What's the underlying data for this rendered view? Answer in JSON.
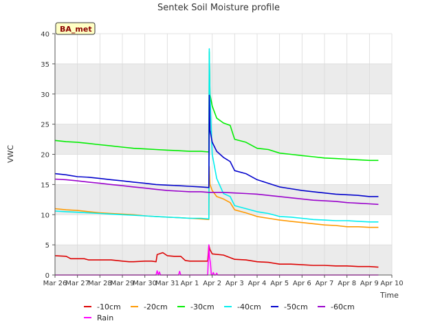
{
  "chart_data": {
    "type": "line",
    "title": "Sentek Soil Moisture profile",
    "xlabel": "Time",
    "ylabel": "VWC",
    "ylim": [
      0,
      40
    ],
    "xlim": [
      0,
      15
    ],
    "yticks": [
      0,
      5,
      10,
      15,
      20,
      25,
      30,
      35,
      40
    ],
    "xtick_labels": [
      "Mar 26",
      "Mar 27",
      "Mar 28",
      "Mar 29",
      "Mar 30",
      "Mar 31",
      "Apr 1",
      "Apr 2",
      "Apr 3",
      "Apr 4",
      "Apr 5",
      "Apr 6",
      "Apr 7",
      "Apr 8",
      "Apr 9",
      "Apr 10"
    ],
    "badge": "BA_met",
    "grid": true,
    "legend_position": "bottom",
    "series": [
      {
        "name": "-10cm",
        "color": "#dd0000",
        "x": [
          0.0,
          0.5,
          0.7,
          1.0,
          1.3,
          1.5,
          2.0,
          2.5,
          3.0,
          3.3,
          3.5,
          4.0,
          4.3,
          4.5,
          4.55,
          4.8,
          5.0,
          5.3,
          5.6,
          5.8,
          6.0,
          6.5,
          6.8,
          6.85,
          6.9,
          7.0,
          7.5,
          8.0,
          8.5,
          9.0,
          9.5,
          10.0,
          10.5,
          11.0,
          11.5,
          12.0,
          12.5,
          13.0,
          13.5,
          14.0,
          14.4
        ],
        "y": [
          3.2,
          3.1,
          2.7,
          2.7,
          2.7,
          2.5,
          2.5,
          2.5,
          2.3,
          2.2,
          2.2,
          2.3,
          2.3,
          2.2,
          3.4,
          3.7,
          3.2,
          3.1,
          3.1,
          2.4,
          2.3,
          2.3,
          2.3,
          4.9,
          4.2,
          3.5,
          3.3,
          2.6,
          2.5,
          2.2,
          2.1,
          1.8,
          1.8,
          1.7,
          1.6,
          1.6,
          1.5,
          1.5,
          1.4,
          1.4,
          1.3
        ]
      },
      {
        "name": "-20cm",
        "color": "#ff9900",
        "x": [
          0.0,
          0.5,
          1.0,
          1.5,
          2.0,
          2.5,
          3.0,
          3.5,
          4.0,
          4.5,
          5.0,
          5.5,
          6.0,
          6.5,
          6.85,
          6.87,
          6.9,
          7.0,
          7.2,
          7.5,
          7.8,
          8.0,
          8.5,
          9.0,
          9.5,
          10.0,
          10.5,
          11.0,
          11.5,
          12.0,
          12.5,
          13.0,
          13.5,
          14.0,
          14.4
        ],
        "y": [
          11.0,
          10.8,
          10.7,
          10.5,
          10.3,
          10.2,
          10.1,
          10.0,
          9.8,
          9.7,
          9.6,
          9.5,
          9.4,
          9.3,
          9.2,
          18.0,
          15.0,
          14.0,
          13.0,
          12.6,
          12.0,
          10.8,
          10.3,
          9.7,
          9.4,
          9.1,
          8.9,
          8.7,
          8.5,
          8.3,
          8.2,
          8.0,
          8.0,
          7.9,
          7.9
        ]
      },
      {
        "name": "-30cm",
        "color": "#00ee00",
        "x": [
          0.0,
          0.5,
          1.0,
          1.5,
          2.0,
          2.5,
          3.0,
          3.5,
          4.0,
          4.5,
          5.0,
          5.5,
          6.0,
          6.5,
          6.85,
          6.87,
          6.9,
          7.0,
          7.2,
          7.5,
          7.8,
          8.0,
          8.5,
          9.0,
          9.5,
          10.0,
          10.5,
          11.0,
          11.5,
          12.0,
          12.5,
          13.0,
          13.5,
          14.0,
          14.4
        ],
        "y": [
          22.3,
          22.1,
          22.0,
          21.8,
          21.6,
          21.4,
          21.2,
          21.0,
          20.9,
          20.8,
          20.7,
          20.6,
          20.5,
          20.5,
          20.4,
          37.0,
          30.0,
          28.0,
          26.0,
          25.2,
          24.8,
          22.5,
          22.0,
          21.0,
          20.8,
          20.2,
          20.0,
          19.8,
          19.6,
          19.4,
          19.3,
          19.2,
          19.1,
          19.0,
          19.0
        ]
      },
      {
        "name": "-40cm",
        "color": "#00eeee",
        "x": [
          0.0,
          0.5,
          1.0,
          1.5,
          2.0,
          2.5,
          3.0,
          3.5,
          4.0,
          4.5,
          5.0,
          5.5,
          6.0,
          6.5,
          6.85,
          6.87,
          6.9,
          7.0,
          7.2,
          7.5,
          7.8,
          8.0,
          8.5,
          9.0,
          9.5,
          10.0,
          10.5,
          11.0,
          11.5,
          12.0,
          12.5,
          13.0,
          13.5,
          14.0,
          14.4
        ],
        "y": [
          10.6,
          10.5,
          10.4,
          10.3,
          10.2,
          10.1,
          10.0,
          9.9,
          9.8,
          9.7,
          9.6,
          9.5,
          9.4,
          9.4,
          9.3,
          37.5,
          30.0,
          20.0,
          16.0,
          13.5,
          13.0,
          11.5,
          11.0,
          10.5,
          10.2,
          9.7,
          9.6,
          9.4,
          9.2,
          9.1,
          9.0,
          9.0,
          8.9,
          8.8,
          8.8
        ]
      },
      {
        "name": "-50cm",
        "color": "#0000cc",
        "x": [
          0.0,
          0.5,
          1.0,
          1.5,
          2.0,
          2.5,
          3.0,
          3.5,
          4.0,
          4.5,
          5.0,
          5.5,
          6.0,
          6.5,
          6.85,
          6.87,
          6.9,
          7.0,
          7.2,
          7.5,
          7.8,
          8.0,
          8.5,
          9.0,
          9.5,
          10.0,
          10.5,
          11.0,
          11.5,
          12.0,
          12.5,
          13.0,
          13.5,
          14.0,
          14.4
        ],
        "y": [
          16.8,
          16.6,
          16.3,
          16.2,
          16.0,
          15.8,
          15.6,
          15.4,
          15.2,
          15.0,
          14.9,
          14.8,
          14.7,
          14.6,
          14.5,
          29.8,
          24.0,
          22.0,
          20.5,
          19.5,
          18.8,
          17.3,
          16.8,
          15.8,
          15.2,
          14.6,
          14.3,
          14.0,
          13.8,
          13.6,
          13.4,
          13.3,
          13.2,
          13.0,
          13.0
        ]
      },
      {
        "name": "-60cm",
        "color": "#9900cc",
        "x": [
          0.0,
          0.5,
          1.0,
          1.5,
          2.0,
          2.5,
          3.0,
          3.5,
          4.0,
          4.5,
          5.0,
          5.5,
          6.0,
          6.5,
          6.85,
          7.0,
          7.5,
          8.0,
          8.5,
          9.0,
          9.5,
          10.0,
          10.5,
          11.0,
          11.5,
          12.0,
          12.5,
          13.0,
          13.5,
          14.0,
          14.4
        ],
        "y": [
          15.9,
          15.8,
          15.6,
          15.4,
          15.2,
          15.0,
          14.8,
          14.6,
          14.4,
          14.2,
          14.0,
          13.9,
          13.8,
          13.8,
          13.7,
          13.7,
          13.7,
          13.6,
          13.5,
          13.4,
          13.2,
          13.0,
          12.8,
          12.6,
          12.4,
          12.3,
          12.2,
          12.0,
          11.9,
          11.8,
          11.7
        ]
      },
      {
        "name": "Rain",
        "color": "#ff00ff",
        "x": [
          0.0,
          4.5,
          4.55,
          4.6,
          4.65,
          4.7,
          5.5,
          5.55,
          5.6,
          6.8,
          6.85,
          6.88,
          6.92,
          6.96,
          7.0,
          7.05,
          7.1,
          7.15,
          7.2,
          7.25,
          7.3,
          14.4
        ],
        "y": [
          0,
          0,
          0.7,
          0,
          0.5,
          0,
          0,
          0.6,
          0,
          0,
          5.0,
          3.0,
          2.0,
          0,
          0,
          0.4,
          0,
          0,
          0.3,
          0,
          0,
          0
        ]
      }
    ]
  }
}
